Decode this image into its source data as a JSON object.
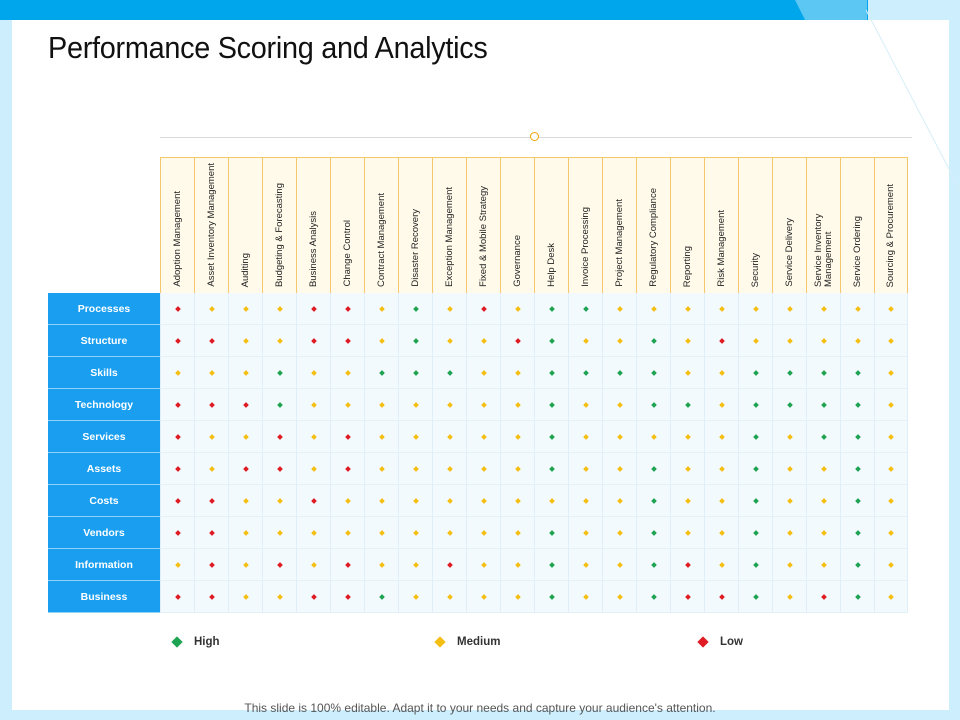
{
  "title": "Performance Scoring and Analytics",
  "footer": "This slide is 100% editable. Adapt it to your needs and capture your audience's attention.",
  "colors": {
    "high": "#1ea352",
    "medium": "#f4bf12",
    "low": "#e01b24",
    "row_header": "#1a9ef0",
    "accent": "#00a6ec"
  },
  "legend": [
    {
      "key": "H",
      "label": "High"
    },
    {
      "key": "M",
      "label": "Medium"
    },
    {
      "key": "L",
      "label": "Low"
    }
  ],
  "columns": [
    "Adoption Management",
    "Asset Inventory Management",
    "Auditing",
    "Budgeting & Forecasting",
    "Business Analysis",
    "Change Control",
    "Contract Management",
    "Disaster Recovery",
    "Exception Management",
    "Fixed & Mobile Strategy",
    "Governance",
    "Help Desk",
    "Invoice Processing",
    "Project Management",
    "Regulatory Compliance",
    "Reporting",
    "Risk Management",
    "Security",
    "Service Delivery",
    "Service Inventory Management",
    "Service Ordering",
    "Sourcing & Procurement"
  ],
  "rows": [
    {
      "label": "Processes",
      "scores": [
        "L",
        "M",
        "M",
        "M",
        "L",
        "L",
        "M",
        "H",
        "M",
        "L",
        "M",
        "H",
        "H",
        "M",
        "M",
        "M",
        "M",
        "M",
        "M",
        "M",
        "M",
        "M"
      ]
    },
    {
      "label": "Structure",
      "scores": [
        "L",
        "L",
        "M",
        "M",
        "L",
        "L",
        "M",
        "H",
        "M",
        "M",
        "L",
        "H",
        "M",
        "M",
        "H",
        "M",
        "L",
        "M",
        "M",
        "M",
        "M",
        "M"
      ]
    },
    {
      "label": "Skills",
      "scores": [
        "M",
        "M",
        "M",
        "H",
        "M",
        "M",
        "H",
        "H",
        "H",
        "M",
        "M",
        "H",
        "H",
        "H",
        "H",
        "M",
        "M",
        "H",
        "H",
        "H",
        "H",
        "M"
      ]
    },
    {
      "label": "Technology",
      "scores": [
        "L",
        "L",
        "L",
        "H",
        "M",
        "M",
        "M",
        "M",
        "M",
        "M",
        "M",
        "H",
        "M",
        "M",
        "H",
        "H",
        "M",
        "H",
        "H",
        "H",
        "H",
        "M"
      ]
    },
    {
      "label": "Services",
      "scores": [
        "L",
        "M",
        "M",
        "L",
        "M",
        "L",
        "M",
        "M",
        "M",
        "M",
        "M",
        "H",
        "M",
        "M",
        "M",
        "M",
        "M",
        "H",
        "M",
        "H",
        "H",
        "M"
      ]
    },
    {
      "label": "Assets",
      "scores": [
        "L",
        "M",
        "L",
        "L",
        "M",
        "L",
        "M",
        "M",
        "M",
        "M",
        "M",
        "H",
        "M",
        "M",
        "H",
        "M",
        "M",
        "H",
        "M",
        "M",
        "H",
        "M"
      ]
    },
    {
      "label": "Costs",
      "scores": [
        "L",
        "L",
        "M",
        "M",
        "L",
        "M",
        "M",
        "M",
        "M",
        "M",
        "M",
        "M",
        "M",
        "M",
        "H",
        "M",
        "M",
        "H",
        "M",
        "M",
        "H",
        "M"
      ]
    },
    {
      "label": "Vendors",
      "scores": [
        "L",
        "L",
        "M",
        "M",
        "M",
        "M",
        "M",
        "M",
        "M",
        "M",
        "M",
        "H",
        "M",
        "M",
        "H",
        "M",
        "M",
        "H",
        "M",
        "M",
        "H",
        "M"
      ]
    },
    {
      "label": "Information",
      "scores": [
        "M",
        "L",
        "M",
        "L",
        "M",
        "L",
        "M",
        "M",
        "L",
        "M",
        "M",
        "H",
        "M",
        "M",
        "H",
        "L",
        "M",
        "H",
        "M",
        "M",
        "H",
        "M"
      ]
    },
    {
      "label": "Business",
      "scores": [
        "L",
        "L",
        "M",
        "M",
        "L",
        "L",
        "H",
        "M",
        "M",
        "M",
        "M",
        "H",
        "M",
        "M",
        "H",
        "L",
        "L",
        "H",
        "M",
        "L",
        "H",
        "M"
      ]
    }
  ]
}
